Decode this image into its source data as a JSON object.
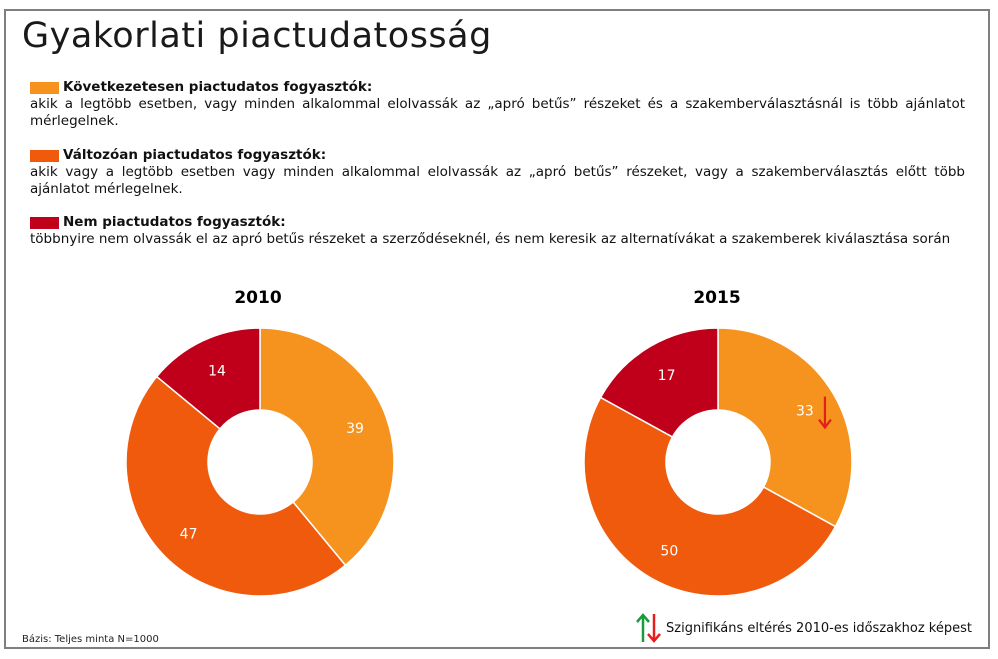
{
  "title": "Gyakorlati piactudatosság",
  "legend": [
    {
      "label": "Következetesen piactudatos fogyasztók:",
      "description": "akik a legtöbb esetben, vagy minden alkalommal  elolvassák  az „apró betűs” részeket és a szakemberválasztásnál  is több ajánlatot mérlegelnek.",
      "color": "#f6921e"
    },
    {
      "label": "Változóan piactudatos fogyasztók:",
      "description": "akik vagy a legtöbb esetben vagy minden alkalommal  elolvassák az „apró betűs” részeket, vagy a szakemberválasztás előtt több ajánlatot mérlegelnek.",
      "color": "#ef5a0d"
    },
    {
      "label": "Nem piactudatos fogyasztók:",
      "description": "többnyire nem olvassák el az apró betűs részeket a szerződéseknél, és nem keresik az alternatívákat  a szakemberek kiválasztása során",
      "color": "#c0001b"
    }
  ],
  "chart_data": [
    {
      "type": "pie",
      "title": "2010",
      "categories": [
        "Következetesen piactudatos fogyasztók",
        "Változóan piactudatos fogyasztók",
        "Nem piactudatos fogyasztók"
      ],
      "values": [
        39,
        47,
        14
      ],
      "labels": [
        "39",
        "47",
        "14"
      ],
      "colors": [
        "#f6921e",
        "#ef5a0d",
        "#c0001b"
      ],
      "significant_change": [
        null,
        null,
        null
      ]
    },
    {
      "type": "pie",
      "title": "2015",
      "categories": [
        "Következetesen piactudatos fogyasztók",
        "Változóan piactudatos fogyasztók",
        "Nem piactudatos fogyasztók"
      ],
      "values": [
        33,
        50,
        17
      ],
      "labels": [
        "33",
        "50",
        "17"
      ],
      "colors": [
        "#f6921e",
        "#ef5a0d",
        "#c0001b"
      ],
      "significant_change": [
        "down",
        null,
        null
      ]
    }
  ],
  "footer": {
    "base": "Bázis: Teljes minta N=1000",
    "significance": "Szignifikáns eltérés 2010-es időszakhoz képest",
    "up_arrow_color": "#1a9a3c",
    "down_arrow_color": "#e41e1e"
  }
}
